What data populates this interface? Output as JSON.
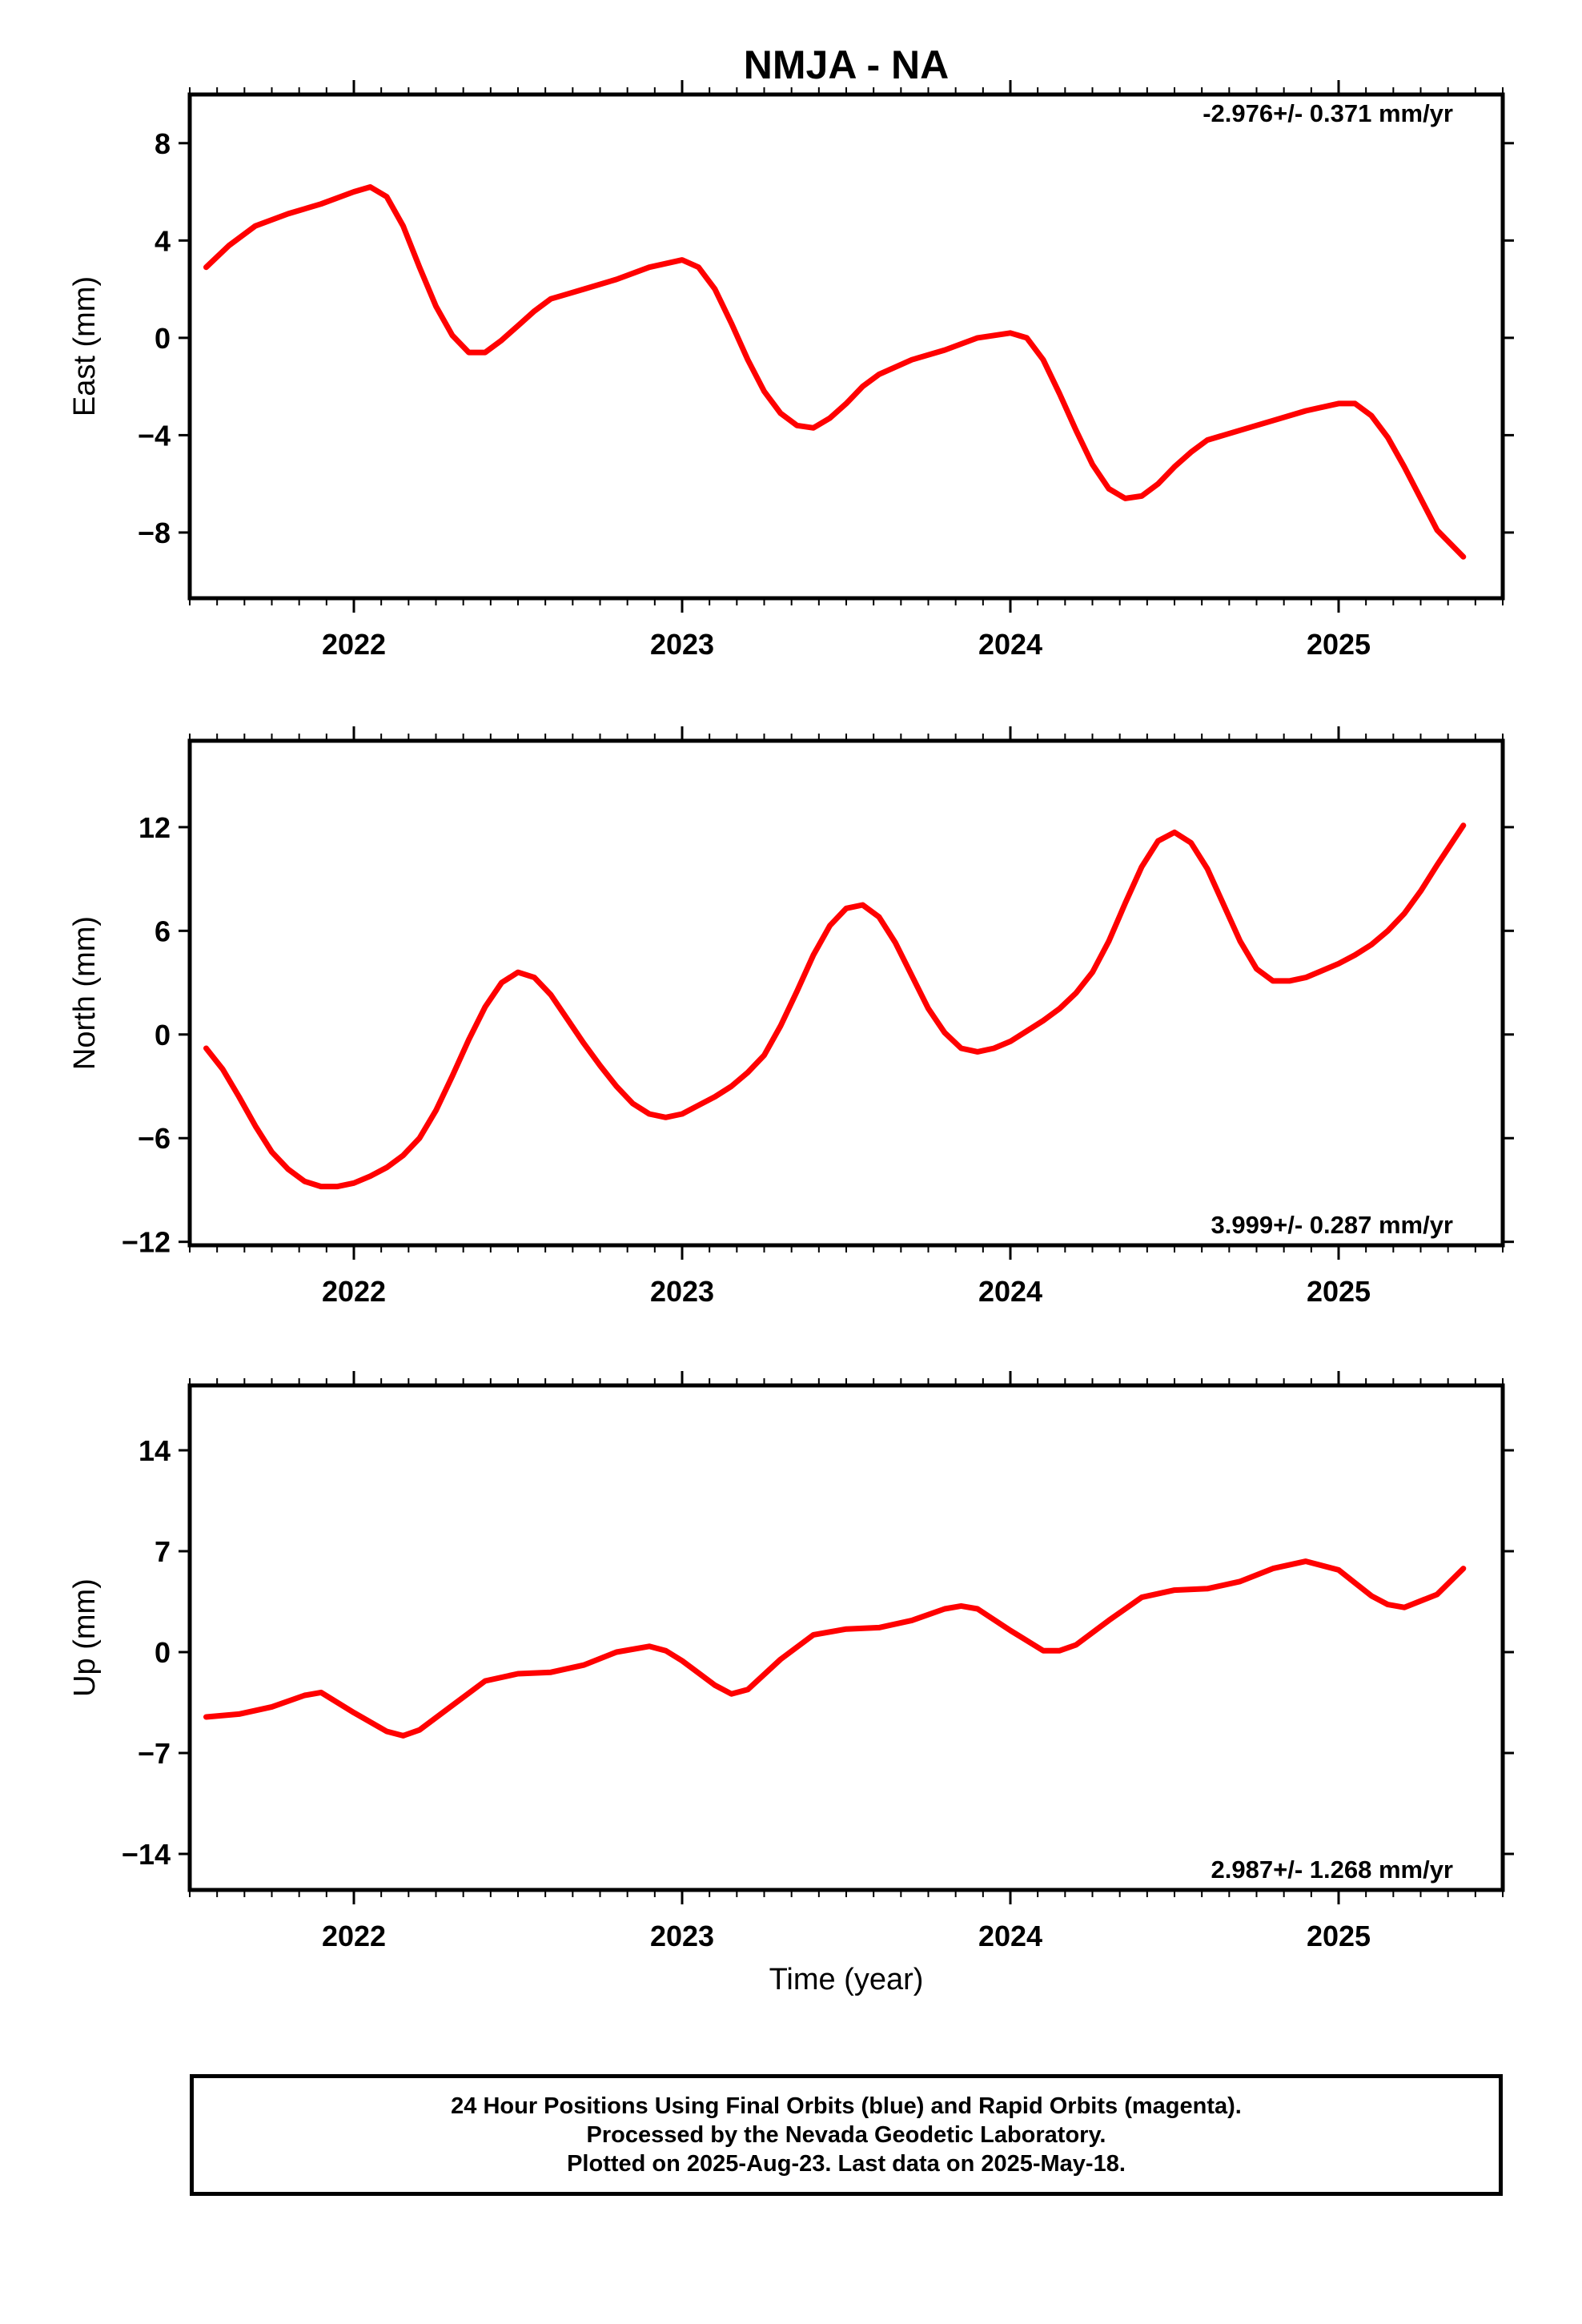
{
  "title": "NMJA - NA",
  "xlabel": "Time (year)",
  "footer": {
    "line1": "24 Hour Positions Using Final Orbits (blue) and Rapid Orbits (magenta).",
    "line2": "Processed by the Nevada Geodetic Laboratory.",
    "line3": "Plotted on 2025-Aug-23. Last data on 2025-May-18."
  },
  "colors": {
    "data": "#0000ff",
    "model": "#ff0000",
    "axes": "#000000"
  },
  "chart_data": [
    {
      "type": "scatter",
      "ylabel": "East (mm)",
      "rate_text": "-2.976+/- 0.371 mm/yr",
      "rate_position": "top-right",
      "xlim": [
        2021.5,
        2025.5
      ],
      "ylim": [
        -10.7,
        10
      ],
      "yticks": [
        "8",
        "4",
        "0",
        "−4",
        "−8"
      ],
      "ytick_values": [
        8,
        4,
        0,
        -4,
        -8
      ],
      "xticks": [
        "2022",
        "2023",
        "2024",
        "2025"
      ],
      "xtick_values": [
        2022,
        2023,
        2024,
        2025
      ],
      "model": {
        "x": [
          2021.55,
          2021.62,
          2021.7,
          2021.8,
          2021.9,
          2022.0,
          2022.05,
          2022.1,
          2022.15,
          2022.2,
          2022.25,
          2022.3,
          2022.35,
          2022.4,
          2022.45,
          2022.5,
          2022.55,
          2022.6,
          2022.65,
          2022.7,
          2022.8,
          2022.9,
          2023.0,
          2023.05,
          2023.1,
          2023.15,
          2023.2,
          2023.25,
          2023.3,
          2023.35,
          2023.4,
          2023.45,
          2023.5,
          2023.55,
          2023.6,
          2023.7,
          2023.8,
          2023.9,
          2024.0,
          2024.05,
          2024.1,
          2024.15,
          2024.2,
          2024.25,
          2024.3,
          2024.35,
          2024.4,
          2024.45,
          2024.5,
          2024.55,
          2024.6,
          2024.7,
          2024.8,
          2024.9,
          2025.0,
          2025.05,
          2025.1,
          2025.15,
          2025.2,
          2025.25,
          2025.3,
          2025.38
        ],
        "y": [
          2.9,
          3.8,
          4.6,
          5.1,
          5.5,
          6.0,
          6.2,
          5.8,
          4.6,
          2.9,
          1.3,
          0.1,
          -0.6,
          -0.6,
          -0.1,
          0.5,
          1.1,
          1.6,
          1.8,
          2.0,
          2.4,
          2.9,
          3.2,
          2.9,
          2.0,
          0.6,
          -0.9,
          -2.2,
          -3.1,
          -3.6,
          -3.7,
          -3.3,
          -2.7,
          -2.0,
          -1.5,
          -0.9,
          -0.5,
          0.0,
          0.2,
          0.0,
          -0.9,
          -2.3,
          -3.8,
          -5.2,
          -6.2,
          -6.6,
          -6.5,
          -6.0,
          -5.3,
          -4.7,
          -4.2,
          -3.8,
          -3.4,
          -3.0,
          -2.7,
          -2.7,
          -3.2,
          -4.1,
          -5.3,
          -6.6,
          -7.9,
          -9.0
        ]
      }
    },
    {
      "type": "scatter",
      "ylabel": "North (mm)",
      "rate_text": "3.999+/- 0.287 mm/yr",
      "rate_position": "bottom-right",
      "xlim": [
        2021.5,
        2025.5
      ],
      "ylim": [
        -12.2,
        17
      ],
      "yticks": [
        "12",
        "6",
        "0",
        "−6",
        "−12"
      ],
      "ytick_values": [
        12,
        6,
        0,
        -6,
        -12
      ],
      "xticks": [
        "2022",
        "2023",
        "2024",
        "2025"
      ],
      "xtick_values": [
        2022,
        2023,
        2024,
        2025
      ],
      "model": {
        "x": [
          2021.55,
          2021.6,
          2021.65,
          2021.7,
          2021.75,
          2021.8,
          2021.85,
          2021.9,
          2021.95,
          2022.0,
          2022.05,
          2022.1,
          2022.15,
          2022.2,
          2022.25,
          2022.3,
          2022.35,
          2022.4,
          2022.45,
          2022.5,
          2022.55,
          2022.6,
          2022.65,
          2022.7,
          2022.75,
          2022.8,
          2022.85,
          2022.9,
          2022.95,
          2023.0,
          2023.05,
          2023.1,
          2023.15,
          2023.2,
          2023.25,
          2023.3,
          2023.35,
          2023.4,
          2023.45,
          2023.5,
          2023.55,
          2023.6,
          2023.65,
          2023.7,
          2023.75,
          2023.8,
          2023.85,
          2023.9,
          2023.95,
          2024.0,
          2024.05,
          2024.1,
          2024.15,
          2024.2,
          2024.25,
          2024.3,
          2024.35,
          2024.4,
          2024.45,
          2024.5,
          2024.55,
          2024.6,
          2024.65,
          2024.7,
          2024.75,
          2024.8,
          2024.85,
          2024.9,
          2024.95,
          2025.0,
          2025.05,
          2025.1,
          2025.15,
          2025.2,
          2025.25,
          2025.3,
          2025.38
        ],
        "y": [
          -0.8,
          -2.0,
          -3.6,
          -5.3,
          -6.8,
          -7.8,
          -8.5,
          -8.8,
          -8.8,
          -8.6,
          -8.2,
          -7.7,
          -7.0,
          -6.0,
          -4.4,
          -2.4,
          -0.3,
          1.6,
          3.0,
          3.6,
          3.3,
          2.3,
          0.9,
          -0.5,
          -1.8,
          -3.0,
          -4.0,
          -4.6,
          -4.8,
          -4.6,
          -4.1,
          -3.6,
          -3.0,
          -2.2,
          -1.2,
          0.5,
          2.5,
          4.6,
          6.3,
          7.3,
          7.5,
          6.8,
          5.3,
          3.4,
          1.5,
          0.1,
          -0.8,
          -1.0,
          -0.8,
          -0.4,
          0.2,
          0.8,
          1.5,
          2.4,
          3.6,
          5.4,
          7.6,
          9.7,
          11.2,
          11.7,
          11.1,
          9.6,
          7.5,
          5.4,
          3.8,
          3.1,
          3.1,
          3.3,
          3.7,
          4.1,
          4.6,
          5.2,
          6.0,
          7.0,
          8.3,
          9.8,
          12.1
        ]
      }
    },
    {
      "type": "scatter",
      "ylabel": "Up (mm)",
      "rate_text": "2.987+/- 1.268 mm/yr",
      "rate_position": "bottom-right",
      "xlim": [
        2021.5,
        2025.5
      ],
      "ylim": [
        -16.5,
        18.5
      ],
      "yticks": [
        "14",
        "7",
        "0",
        "−7",
        "−14"
      ],
      "ytick_values": [
        14,
        7,
        0,
        -7,
        -14
      ],
      "xticks": [
        "2022",
        "2023",
        "2024",
        "2025"
      ],
      "xtick_values": [
        2022,
        2023,
        2024,
        2025
      ],
      "model": {
        "x": [
          2021.55,
          2021.65,
          2021.75,
          2021.85,
          2021.9,
          2022.0,
          2022.1,
          2022.15,
          2022.2,
          2022.3,
          2022.4,
          2022.5,
          2022.6,
          2022.7,
          2022.8,
          2022.9,
          2022.95,
          2023.0,
          2023.1,
          2023.15,
          2023.2,
          2023.3,
          2023.4,
          2023.5,
          2023.6,
          2023.7,
          2023.8,
          2023.85,
          2023.9,
          2024.0,
          2024.1,
          2024.15,
          2024.2,
          2024.3,
          2024.4,
          2024.5,
          2024.6,
          2024.7,
          2024.8,
          2024.9,
          2025.0,
          2025.05,
          2025.1,
          2025.15,
          2025.2,
          2025.3,
          2025.38
        ],
        "y": [
          -4.5,
          -4.3,
          -3.8,
          -3.0,
          -2.8,
          -4.2,
          -5.5,
          -5.8,
          -5.4,
          -3.7,
          -2.0,
          -1.5,
          -1.4,
          -0.9,
          0.0,
          0.4,
          0.1,
          -0.6,
          -2.3,
          -2.9,
          -2.6,
          -0.5,
          1.2,
          1.6,
          1.7,
          2.2,
          3.0,
          3.2,
          3.0,
          1.5,
          0.1,
          0.1,
          0.5,
          2.2,
          3.8,
          4.3,
          4.4,
          4.9,
          5.8,
          6.3,
          5.7,
          4.8,
          3.9,
          3.3,
          3.1,
          4.0,
          5.8
        ]
      }
    }
  ]
}
